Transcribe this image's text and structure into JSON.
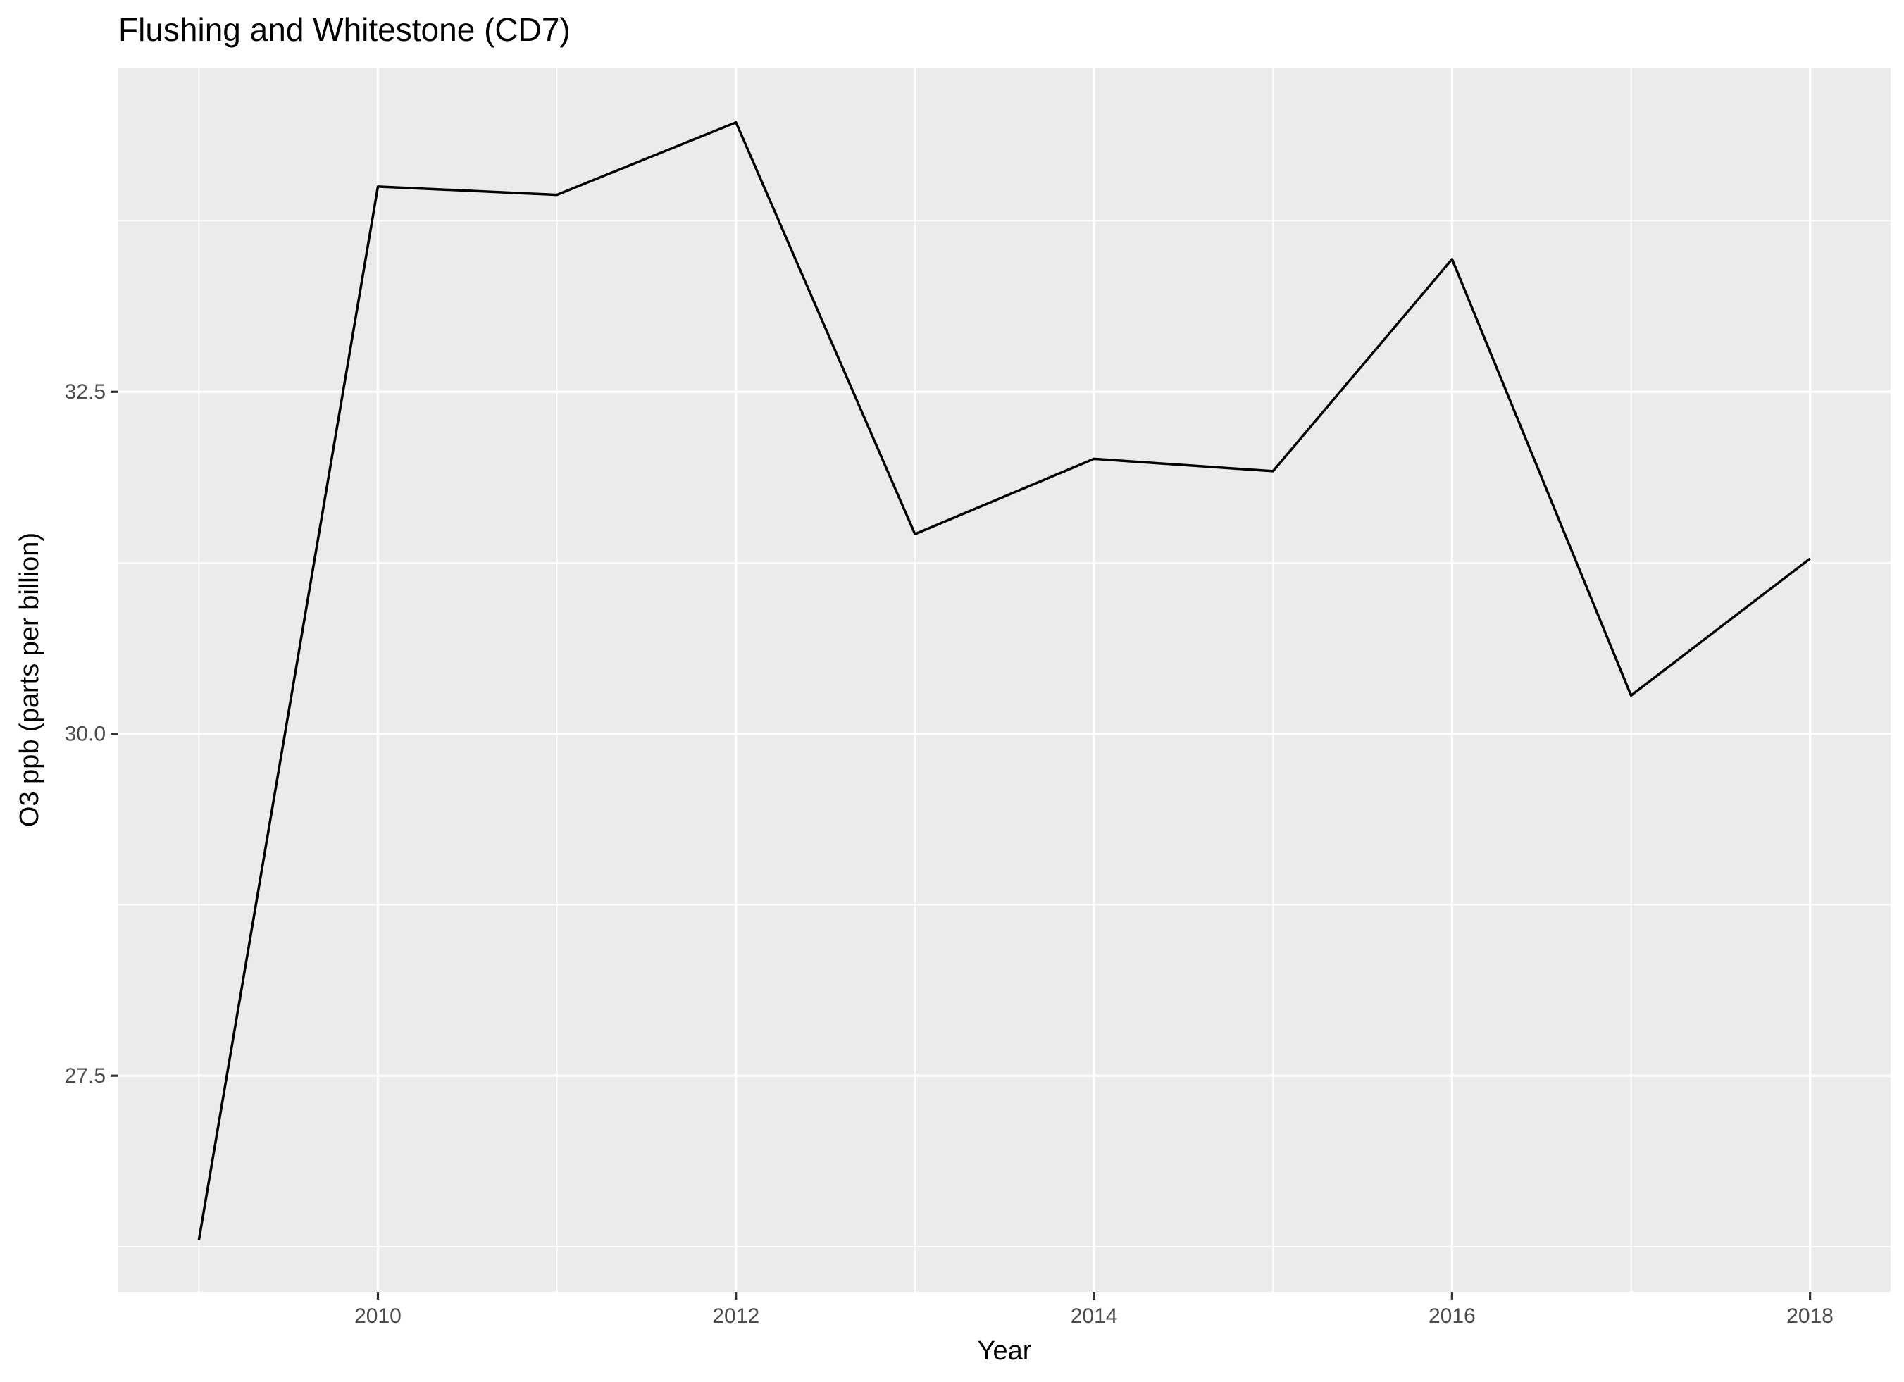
{
  "chart_data": {
    "type": "line",
    "title": "Flushing and Whitestone (CD7)",
    "xlabel": "Year",
    "ylabel": "O3 ppb (parts per billion)",
    "x": [
      2009,
      2010,
      2011,
      2012,
      2013,
      2014,
      2015,
      2016,
      2017,
      2018
    ],
    "series": [
      {
        "values": [
          26.3,
          34.0,
          33.94,
          34.47,
          31.46,
          32.01,
          31.92,
          33.47,
          30.28,
          31.28
        ]
      }
    ],
    "xlim": [
      2008.55,
      2018.45
    ],
    "ylim": [
      25.92,
      34.87
    ],
    "x_ticks": [
      2010,
      2012,
      2014,
      2016,
      2018
    ],
    "x_tick_labels": [
      "2010",
      "2012",
      "2014",
      "2016",
      "2018"
    ],
    "y_ticks": [
      27.5,
      30.0,
      32.5
    ],
    "y_tick_labels": [
      "27.5",
      "30.0",
      "32.5"
    ],
    "grid": true,
    "legend": "none",
    "colors": {
      "panel_background": "#ebebeb",
      "grid": "#ffffff",
      "line": "#000000",
      "tick_label": "#4d4d4d"
    }
  }
}
